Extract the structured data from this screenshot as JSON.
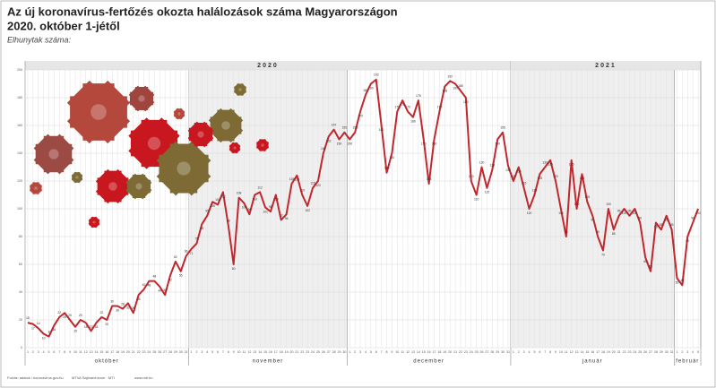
{
  "chart_data": {
    "type": "line",
    "title": "Az új koronavírus-fertőzés okozta halálozások száma Magyarországon",
    "subtitle": "2020. október 1-jétől",
    "y_label": "Elhunytak száma:",
    "periods": [
      {
        "year": "2020",
        "months": [
          {
            "name": "október",
            "days": [
              1,
              2,
              3,
              4,
              5,
              6,
              7,
              8,
              9,
              10,
              11,
              12,
              13,
              14,
              15,
              16,
              17,
              18,
              19,
              20,
              21,
              22,
              23,
              24,
              25,
              26,
              27,
              28,
              29,
              30,
              31
            ]
          },
          {
            "name": "november",
            "days": [
              1,
              2,
              3,
              4,
              5,
              6,
              7,
              8,
              9,
              10,
              11,
              12,
              13,
              14,
              15,
              16,
              17,
              18,
              19,
              20,
              21,
              22,
              23,
              24,
              25,
              26,
              27,
              28,
              29,
              30
            ]
          },
          {
            "name": "december",
            "days": [
              1,
              2,
              3,
              4,
              5,
              6,
              7,
              8,
              9,
              10,
              11,
              12,
              13,
              14,
              15,
              16,
              17,
              18,
              19,
              20,
              21,
              22,
              23,
              24,
              25,
              26,
              27,
              28,
              29,
              30,
              31
            ]
          }
        ]
      },
      {
        "year": "2021",
        "months": [
          {
            "name": "január",
            "days": [
              1,
              2,
              3,
              4,
              5,
              6,
              7,
              8,
              9,
              10,
              11,
              12,
              13,
              14,
              15,
              16,
              17,
              18,
              19,
              20,
              21,
              22,
              23,
              24,
              25,
              26,
              27,
              28,
              29,
              30,
              31
            ]
          },
          {
            "name": "február",
            "days": [
              1,
              2,
              3,
              4,
              5
            ]
          }
        ]
      }
    ],
    "series": [
      {
        "name": "Elhunytak száma",
        "color": "#c1272d",
        "values": [
          18,
          17,
          14,
          10,
          8,
          16,
          22,
          25,
          20,
          15,
          20,
          18,
          12,
          18,
          22,
          20,
          30,
          30,
          28,
          32,
          25,
          38,
          42,
          48,
          48,
          44,
          38,
          52,
          62,
          55,
          66,
          71,
          75,
          89,
          95,
          105,
          103,
          112,
          88,
          60,
          108,
          104,
          96,
          110,
          112,
          101,
          98,
          110,
          92,
          96,
          118,
          124,
          110,
          102,
          115,
          120,
          140,
          152,
          157,
          150,
          155,
          150,
          155,
          170,
          182,
          190,
          193,
          160,
          126,
          140,
          170,
          178,
          170,
          166,
          178,
          150,
          118,
          150,
          170,
          188,
          192,
          190,
          185,
          180,
          120,
          110,
          130,
          115,
          128,
          150,
          155,
          131,
          120,
          130,
          115,
          100,
          110,
          125,
          130,
          135,
          120,
          100,
          80,
          135,
          100,
          125,
          105,
          95,
          80,
          70,
          100,
          85,
          95,
          100,
          95,
          100,
          90,
          65,
          55,
          90,
          85,
          95,
          85,
          50,
          45,
          80,
          90,
          100
        ]
      }
    ],
    "ylim": [
      0,
      200
    ],
    "yticks": [
      0,
      20,
      40,
      60,
      80,
      100,
      120,
      140,
      160,
      180,
      200
    ],
    "grid": true,
    "source": "Forrás: adatok / koronavirus.gov.hu",
    "credit": "MTVA Sajtóarchívum · MTI",
    "web": "www.mti.hu"
  }
}
